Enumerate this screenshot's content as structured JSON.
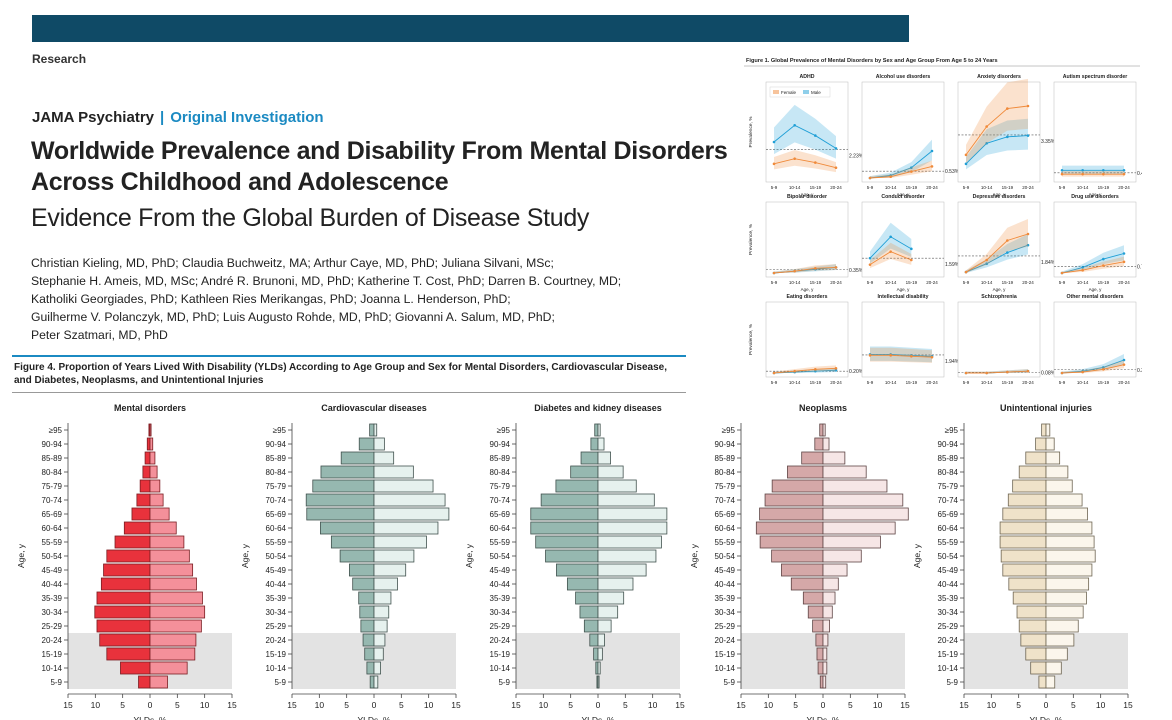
{
  "header": {
    "section": "Research",
    "journal": "JAMA Psychiatry",
    "separator": "|",
    "article_type": "Original Investigation"
  },
  "title_lines": [
    "Worldwide Prevalence and Disability From Mental Disorders",
    "Across Childhood and Adolescence"
  ],
  "subtitle": "Evidence From the Global Burden of Disease Study",
  "authors": [
    "Christian Kieling, MD, PhD; Claudia Buchweitz, MA; Arthur Caye, MD, PhD; Juliana Silvani, MSc;",
    "Stephanie H. Ameis, MD, MSc; André R. Brunoni, MD, PhD; Katherine T. Cost, PhD; Darren B. Courtney, MD;",
    "Katholiki Georgiades, PhD; Kathleen Ries Merikangas, PhD; Joanna L. Henderson, PhD;",
    "Guilherme V. Polanczyk, MD, PhD; Luis Augusto Rohde, MD, PhD; Giovanni A. Salum, MD, PhD;",
    "Peter Szatmari, MD, PhD"
  ],
  "figure4": {
    "title": "Figure 4. Proportion of Years Lived With Disability (YLDs) According to Age Group and Sex for Mental Disorders, Cardiovascular Disease, and Diabetes, Neoplasms, and Unintentional Injuries",
    "ylabel": "Age, y",
    "xlabel": "YLDs, %",
    "xticks": [
      "15",
      "10",
      "5",
      "0",
      "5",
      "10",
      "15"
    ],
    "age_groups": [
      "≥95",
      "90-94",
      "85-89",
      "80-84",
      "75-79",
      "70-74",
      "65-69",
      "60-64",
      "55-59",
      "50-54",
      "45-49",
      "40-44",
      "35-39",
      "30-34",
      "25-29",
      "20-24",
      "15-19",
      "10-14",
      "5-9"
    ],
    "highlight_ages": [
      "20-24",
      "15-19",
      "10-14",
      "5-9"
    ]
  },
  "chart_data": [
    {
      "type": "bar",
      "title": "Mental disorders",
      "colors": {
        "left": "#e8323c",
        "right": "#f4909a",
        "edge": "#7a1d22"
      },
      "categories": [
        "≥95",
        "90-94",
        "85-89",
        "80-84",
        "75-79",
        "70-74",
        "65-69",
        "60-64",
        "55-59",
        "50-54",
        "45-49",
        "40-44",
        "35-39",
        "30-34",
        "25-29",
        "20-24",
        "15-19",
        "10-14",
        "5-9"
      ],
      "series": [
        {
          "values": [
            0.2,
            0.5,
            0.9,
            1.3,
            1.8,
            2.4,
            3.3,
            4.7,
            6.4,
            7.9,
            8.5,
            8.9,
            9.7,
            10.1,
            9.7,
            9.2,
            7.9,
            5.4,
            2.1
          ]
        },
        {
          "values": [
            0.2,
            0.5,
            0.9,
            1.3,
            1.8,
            2.4,
            3.5,
            4.8,
            6.2,
            7.2,
            7.8,
            8.5,
            9.6,
            10.0,
            9.4,
            8.4,
            8.2,
            6.8,
            3.2
          ]
        }
      ],
      "xlabel": "YLDs, %",
      "ylabel": "Age, y",
      "xlim": [
        -15,
        15
      ]
    },
    {
      "type": "bar",
      "title": "Cardiovascular diseases",
      "colors": {
        "left": "#96b8b0",
        "right": "#e6f1ee",
        "edge": "#41524e"
      },
      "categories": [
        "≥95",
        "90-94",
        "85-89",
        "80-84",
        "75-79",
        "70-74",
        "65-69",
        "60-64",
        "55-59",
        "50-54",
        "45-49",
        "40-44",
        "35-39",
        "30-34",
        "25-29",
        "20-24",
        "15-19",
        "10-14",
        "5-9"
      ],
      "series": [
        {
          "values": [
            0.8,
            2.7,
            6.0,
            9.7,
            11.2,
            12.4,
            12.3,
            9.8,
            7.8,
            6.2,
            4.5,
            3.9,
            2.8,
            2.6,
            2.4,
            2.0,
            1.7,
            1.3,
            0.7
          ]
        },
        {
          "values": [
            0.5,
            1.9,
            3.6,
            7.2,
            10.8,
            13.0,
            13.7,
            11.7,
            9.6,
            7.3,
            5.8,
            4.3,
            3.1,
            2.7,
            2.4,
            2.0,
            1.7,
            1.2,
            0.7
          ]
        }
      ],
      "xlabel": "YLDs, %",
      "ylabel": "Age, y",
      "xlim": [
        -15,
        15
      ]
    },
    {
      "type": "bar",
      "title": "Diabetes and kidney diseases",
      "colors": {
        "left": "#96b8b0",
        "right": "#e6f1ee",
        "edge": "#41524e"
      },
      "categories": [
        "≥95",
        "90-94",
        "85-89",
        "80-84",
        "75-79",
        "70-74",
        "65-69",
        "60-64",
        "55-59",
        "50-54",
        "45-49",
        "40-44",
        "35-39",
        "30-34",
        "25-29",
        "20-24",
        "15-19",
        "10-14",
        "5-9"
      ],
      "series": [
        {
          "values": [
            0.6,
            1.3,
            3.1,
            5.0,
            7.7,
            10.4,
            12.3,
            12.3,
            11.4,
            9.6,
            7.6,
            5.6,
            4.1,
            3.3,
            2.5,
            1.5,
            0.8,
            0.4,
            0.2
          ]
        },
        {
          "values": [
            0.4,
            1.1,
            2.3,
            4.6,
            7.0,
            10.3,
            12.6,
            12.6,
            11.6,
            10.6,
            8.8,
            6.4,
            4.7,
            3.6,
            2.4,
            1.2,
            0.8,
            0.4,
            0.2
          ]
        }
      ],
      "xlabel": "YLDs, %",
      "ylabel": "Age, y",
      "xlim": [
        -15,
        15
      ]
    },
    {
      "type": "bar",
      "title": "Neoplasms",
      "colors": {
        "left": "#d5a8a8",
        "right": "#f6e6e6",
        "edge": "#5e4444"
      },
      "categories": [
        "≥95",
        "90-94",
        "85-89",
        "80-84",
        "75-79",
        "70-74",
        "65-69",
        "60-64",
        "55-59",
        "50-54",
        "45-49",
        "40-44",
        "35-39",
        "30-34",
        "25-29",
        "20-24",
        "15-19",
        "10-14",
        "5-9"
      ],
      "series": [
        {
          "values": [
            0.6,
            1.5,
            3.9,
            6.5,
            9.3,
            10.6,
            11.6,
            12.2,
            11.5,
            9.4,
            7.6,
            5.8,
            3.6,
            2.7,
            1.9,
            1.3,
            1.1,
            0.9,
            0.5
          ]
        },
        {
          "values": [
            0.4,
            1.1,
            4.0,
            7.9,
            11.7,
            14.6,
            15.6,
            13.2,
            10.5,
            7.0,
            4.4,
            2.8,
            2.2,
            1.7,
            1.2,
            0.9,
            0.7,
            0.7,
            0.5
          ]
        }
      ],
      "xlabel": "YLDs, %",
      "ylabel": "Age, y",
      "xlim": [
        -15,
        15
      ]
    },
    {
      "type": "bar",
      "title": "Unintentional injuries",
      "colors": {
        "left": "#efe2c9",
        "right": "#fbf6ec",
        "edge": "#6e6552"
      },
      "categories": [
        "≥95",
        "90-94",
        "85-89",
        "80-84",
        "75-79",
        "70-74",
        "65-69",
        "60-64",
        "55-59",
        "50-54",
        "45-49",
        "40-44",
        "35-39",
        "30-34",
        "25-29",
        "20-24",
        "15-19",
        "10-14",
        "5-9"
      ],
      "series": [
        {
          "values": [
            0.8,
            1.9,
            3.7,
            4.9,
            6.1,
            6.9,
            7.9,
            8.4,
            8.4,
            8.2,
            7.9,
            6.8,
            6.0,
            5.3,
            4.9,
            4.6,
            3.7,
            2.8,
            1.3
          ]
        },
        {
          "values": [
            0.7,
            1.5,
            2.5,
            4.0,
            4.8,
            6.6,
            7.6,
            8.4,
            8.8,
            9.0,
            8.4,
            7.8,
            7.4,
            6.8,
            5.9,
            5.1,
            3.9,
            2.8,
            1.6
          ]
        }
      ],
      "xlabel": "YLDs, %",
      "ylabel": "Age, y",
      "xlim": [
        -15,
        15
      ]
    },
    {
      "type": "line",
      "figure": "Figure 1. Global Prevalence of Mental Disorders by Sex and Age Group From Age 5 to 24 Years",
      "x": [
        "5-9",
        "10-14",
        "15-19",
        "20-24"
      ],
      "xlabel": "Age, y",
      "ylabel": "Prevalence, %",
      "ylim": [
        0,
        7
      ],
      "legend": [
        "Female",
        "Male"
      ],
      "colors": {
        "female": "#f08a3a",
        "male": "#1f9fd6"
      },
      "panels": [
        {
          "title": "ADHD",
          "female": [
            1.1,
            1.5,
            1.2,
            0.8
          ],
          "male": [
            2.8,
            4.1,
            3.3,
            2.3
          ],
          "ref": 2.23,
          "ref_label": "2.23%"
        },
        {
          "title": "Alcohol use disorders",
          "female": [
            0.0,
            0.1,
            0.5,
            0.9
          ],
          "male": [
            0.0,
            0.2,
            0.8,
            2.1
          ],
          "ref": 0.53,
          "ref_label": "0.53%"
        },
        {
          "title": "Anxiety disorders",
          "female": [
            1.8,
            4.0,
            5.4,
            5.6
          ],
          "male": [
            1.1,
            2.7,
            3.2,
            3.3
          ],
          "ref": 3.35,
          "ref_label": "3.35%"
        },
        {
          "title": "Autism spectrum disorder",
          "female": [
            0.3,
            0.3,
            0.3,
            0.3
          ],
          "male": [
            0.6,
            0.6,
            0.6,
            0.6
          ],
          "ref": 0.4,
          "ref_label": "0.40%"
        },
        {
          "title": "Bipolar disorder",
          "female": [
            0.0,
            0.2,
            0.5,
            0.6
          ],
          "male": [
            0.0,
            0.2,
            0.4,
            0.6
          ],
          "ref": 0.35,
          "ref_label": "0.35%"
        },
        {
          "title": "Conduct disorder",
          "female": [
            0.9,
            2.3,
            1.4,
            null
          ],
          "male": [
            1.6,
            3.9,
            2.6,
            null
          ],
          "ref": 1.59,
          "ref_label": "1.59%"
        },
        {
          "title": "Depressive disorders",
          "female": [
            0.1,
            1.4,
            3.5,
            4.2
          ],
          "male": [
            0.1,
            1.0,
            2.2,
            3.0
          ],
          "ref": 1.84,
          "ref_label": "1.84%"
        },
        {
          "title": "Drug use disorders",
          "female": [
            0.0,
            0.3,
            0.8,
            1.2
          ],
          "male": [
            0.0,
            0.6,
            1.5,
            2.1
          ],
          "ref": 0.72,
          "ref_label": "0.72%"
        },
        {
          "title": "Eating disorders",
          "female": [
            0.0,
            0.2,
            0.4,
            0.5
          ],
          "male": [
            0.0,
            0.1,
            0.2,
            0.3
          ],
          "ref": 0.2,
          "ref_label": "0.20%"
        },
        {
          "title": "Intellectual disability",
          "female": [
            1.9,
            1.9,
            1.8,
            1.7
          ],
          "male": [
            2.0,
            2.0,
            1.9,
            1.8
          ],
          "ref": 1.94,
          "ref_label": "1.94%"
        },
        {
          "title": "Schizophrenia",
          "female": [
            0.0,
            0.0,
            0.1,
            0.2
          ],
          "male": [
            0.0,
            0.0,
            0.1,
            0.2
          ],
          "ref": 0.08,
          "ref_label": "0.08%"
        },
        {
          "title": "Other mental disorders",
          "female": [
            0.0,
            0.1,
            0.4,
            0.9
          ],
          "male": [
            0.0,
            0.2,
            0.6,
            1.4
          ],
          "ref": 0.35,
          "ref_label": "0.35%"
        }
      ]
    }
  ]
}
